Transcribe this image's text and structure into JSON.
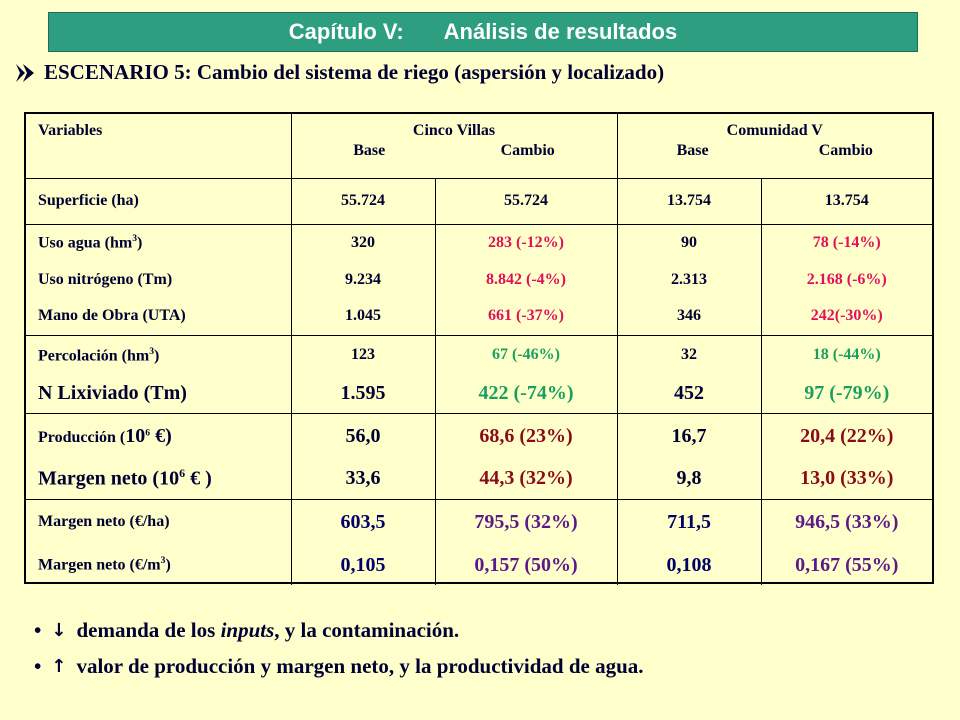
{
  "header": {
    "chapter": "Capítulo V:",
    "title": "Análisis de resultados"
  },
  "scenario": {
    "text": "ESCENARIO 5: Cambio del sistema de riego (aspersión y localizado)"
  },
  "table": {
    "col_variables": "Variables",
    "group1": {
      "name": "Cinco Villas",
      "base": "Base",
      "change": "Cambio"
    },
    "group2": {
      "name": "Comunidad V",
      "base": "Base",
      "change": "Cambio"
    },
    "rows": {
      "superficie": {
        "label": "Superficie (ha)",
        "v1": "55.724",
        "v2": "55.724",
        "v3": "13.754",
        "v4": "13.754"
      },
      "uso_agua": {
        "label": "Uso agua (hm",
        "sup": "3",
        "label_end": ")",
        "v1": "320",
        "v2": "283 (-12%)",
        "v3": "90",
        "v4": "78 (-14%)"
      },
      "uso_nitrogeno": {
        "label": "Uso nitrógeno (Tm)",
        "v1": "9.234",
        "v2": "8.842 (-4%)",
        "v3": "2.313",
        "v4": "2.168 (-6%)"
      },
      "mano_obra": {
        "label": "Mano de Obra (UTA)",
        "v1": "1.045",
        "v2": "661 (-37%)",
        "v3": "346",
        "v4": "242(-30%)"
      },
      "percolacion": {
        "label": "Percolación (hm",
        "sup": "3",
        "label_end": ")",
        "v1": "123",
        "v2": "67 (-46%)",
        "v3": "32",
        "v4": "18 (-44%)"
      },
      "n_lixiviado": {
        "label": "N Lixiviado (Tm)",
        "v1": "1.595",
        "v2": "422 (-74%)",
        "v3": "452",
        "v4": "97 (-79%)"
      },
      "produccion": {
        "label": "Producción (",
        "big": "10",
        "sup": "6",
        "label_end": " €)",
        "v1": "56,0",
        "v2": "68,6 (23%)",
        "v3": "16,7",
        "v4": "20,4 (22%)"
      },
      "margen_neto_total": {
        "label": "Margen neto (10",
        "sup": "6",
        "label_end": " € )",
        "v1": "33,6",
        "v2": "44,3 (32%)",
        "v3": "9,8",
        "v4": "13,0 (33%)"
      },
      "margen_neto_ha": {
        "label": "Margen neto (€/ha)",
        "v1": "603,5",
        "v2": "795,5 (32%)",
        "v3": "711,5",
        "v4": "946,5 (33%)"
      },
      "margen_neto_m3": {
        "label": "Margen neto (€/m",
        "sup": "3",
        "label_end": ")",
        "v1": "0,105",
        "v2": "0,157 (50%)",
        "v3": "0,108",
        "v4": "0,167 (55%)"
      }
    }
  },
  "bullets": {
    "b1": {
      "dot": "•",
      "arrow": "↓",
      "pre": "demanda de los ",
      "italic": "inputs",
      "post": ", y la contaminación."
    },
    "b2": {
      "dot": "•",
      "arrow": "↑",
      "text": "valor de producción y margen neto, y la productividad de agua."
    }
  },
  "colors": {
    "title_bg": "#2e9e80",
    "background": "#ffffcc",
    "increase": "#e0105a",
    "decrease_green": "#1aa05e"
  },
  "icons": {
    "scenario_bullet": "double-chevron-right-icon"
  }
}
